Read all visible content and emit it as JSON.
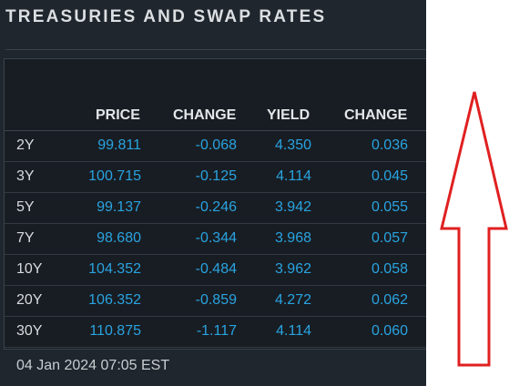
{
  "widget": {
    "title": "TREASURIES AND SWAP RATES",
    "columns": [
      "PRICE",
      "CHANGE",
      "YIELD",
      "CHANGE"
    ],
    "rows": [
      {
        "tenor": "2Y",
        "price": "99.811",
        "change": "-0.068",
        "yield": "4.350",
        "yield_change": "0.036"
      },
      {
        "tenor": "3Y",
        "price": "100.715",
        "change": "-0.125",
        "yield": "4.114",
        "yield_change": "0.045"
      },
      {
        "tenor": "5Y",
        "price": "99.137",
        "change": "-0.246",
        "yield": "3.942",
        "yield_change": "0.055"
      },
      {
        "tenor": "7Y",
        "price": "98.680",
        "change": "-0.344",
        "yield": "3.968",
        "yield_change": "0.057"
      },
      {
        "tenor": "10Y",
        "price": "104.352",
        "change": "-0.484",
        "yield": "3.962",
        "yield_change": "0.058"
      },
      {
        "tenor": "20Y",
        "price": "106.352",
        "change": "-0.859",
        "yield": "4.272",
        "yield_change": "0.062"
      },
      {
        "tenor": "30Y",
        "price": "110.875",
        "change": "-1.117",
        "yield": "4.114",
        "yield_change": "0.060"
      }
    ],
    "timestamp": "04 Jan 2024 07:05 EST"
  },
  "annotation": {
    "shape": "up-arrow-outline",
    "color": "#e02020"
  },
  "colors": {
    "panel_bg": "#1f262d",
    "value_blue": "#29a3e0",
    "header_text": "#e3e6e9"
  }
}
